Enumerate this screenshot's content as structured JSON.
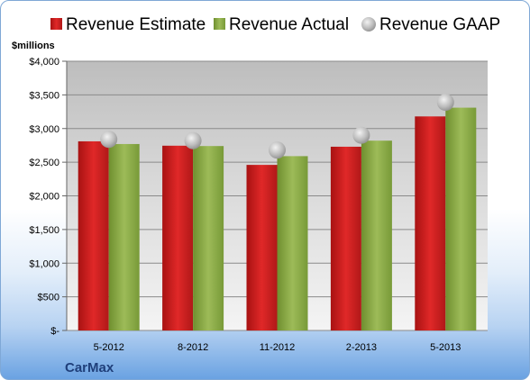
{
  "chart_data": {
    "type": "bar",
    "title": "",
    "unit_label": "$millions",
    "company": "CarMax",
    "categories": [
      "5-2012",
      "8-2012",
      "11-2012",
      "2-2013",
      "5-2013"
    ],
    "series": [
      {
        "name": "Revenue Estimate",
        "type": "bar",
        "color": "#cc1f1f",
        "values": [
          2810,
          2745,
          2460,
          2730,
          3180
        ]
      },
      {
        "name": "Revenue Actual",
        "type": "bar",
        "color": "#8eac4a",
        "values": [
          2770,
          2740,
          2590,
          2820,
          3310
        ]
      },
      {
        "name": "Revenue GAAP",
        "type": "marker",
        "color": "#b8b8b8",
        "values": [
          2840,
          2820,
          2680,
          2900,
          3390
        ]
      }
    ],
    "y_ticks": [
      {
        "value": 0,
        "label": "$-"
      },
      {
        "value": 500,
        "label": "$500"
      },
      {
        "value": 1000,
        "label": "$1,000"
      },
      {
        "value": 1500,
        "label": "$1,500"
      },
      {
        "value": 2000,
        "label": "$2,000"
      },
      {
        "value": 2500,
        "label": "$2,500"
      },
      {
        "value": 3000,
        "label": "$3,000"
      },
      {
        "value": 3500,
        "label": "$3,500"
      },
      {
        "value": 4000,
        "label": "$4,000"
      }
    ],
    "ylim": [
      0,
      4000
    ],
    "grid": true,
    "legend_position": "top"
  }
}
